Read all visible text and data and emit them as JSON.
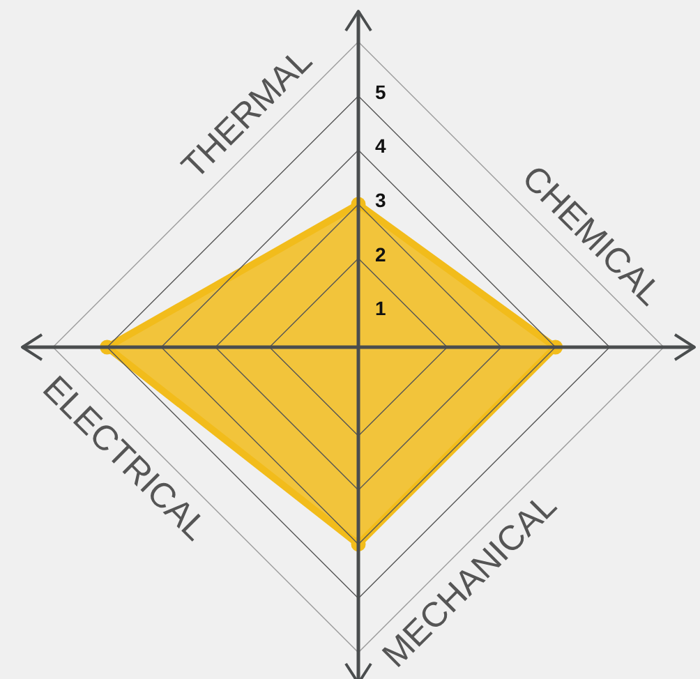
{
  "chart_data": {
    "type": "radar",
    "categories": [
      "THERMAL",
      "CHEMICAL",
      "MECHANICAL",
      "ELECTRICAL"
    ],
    "series": [
      {
        "color": "#f2bc1b",
        "values": [
          3,
          4,
          4,
          5
        ]
      }
    ],
    "ylim": [
      0.36,
      6
    ],
    "yticks": [
      1,
      2,
      3,
      4,
      5
    ],
    "grid": true,
    "marker": "circle"
  }
}
